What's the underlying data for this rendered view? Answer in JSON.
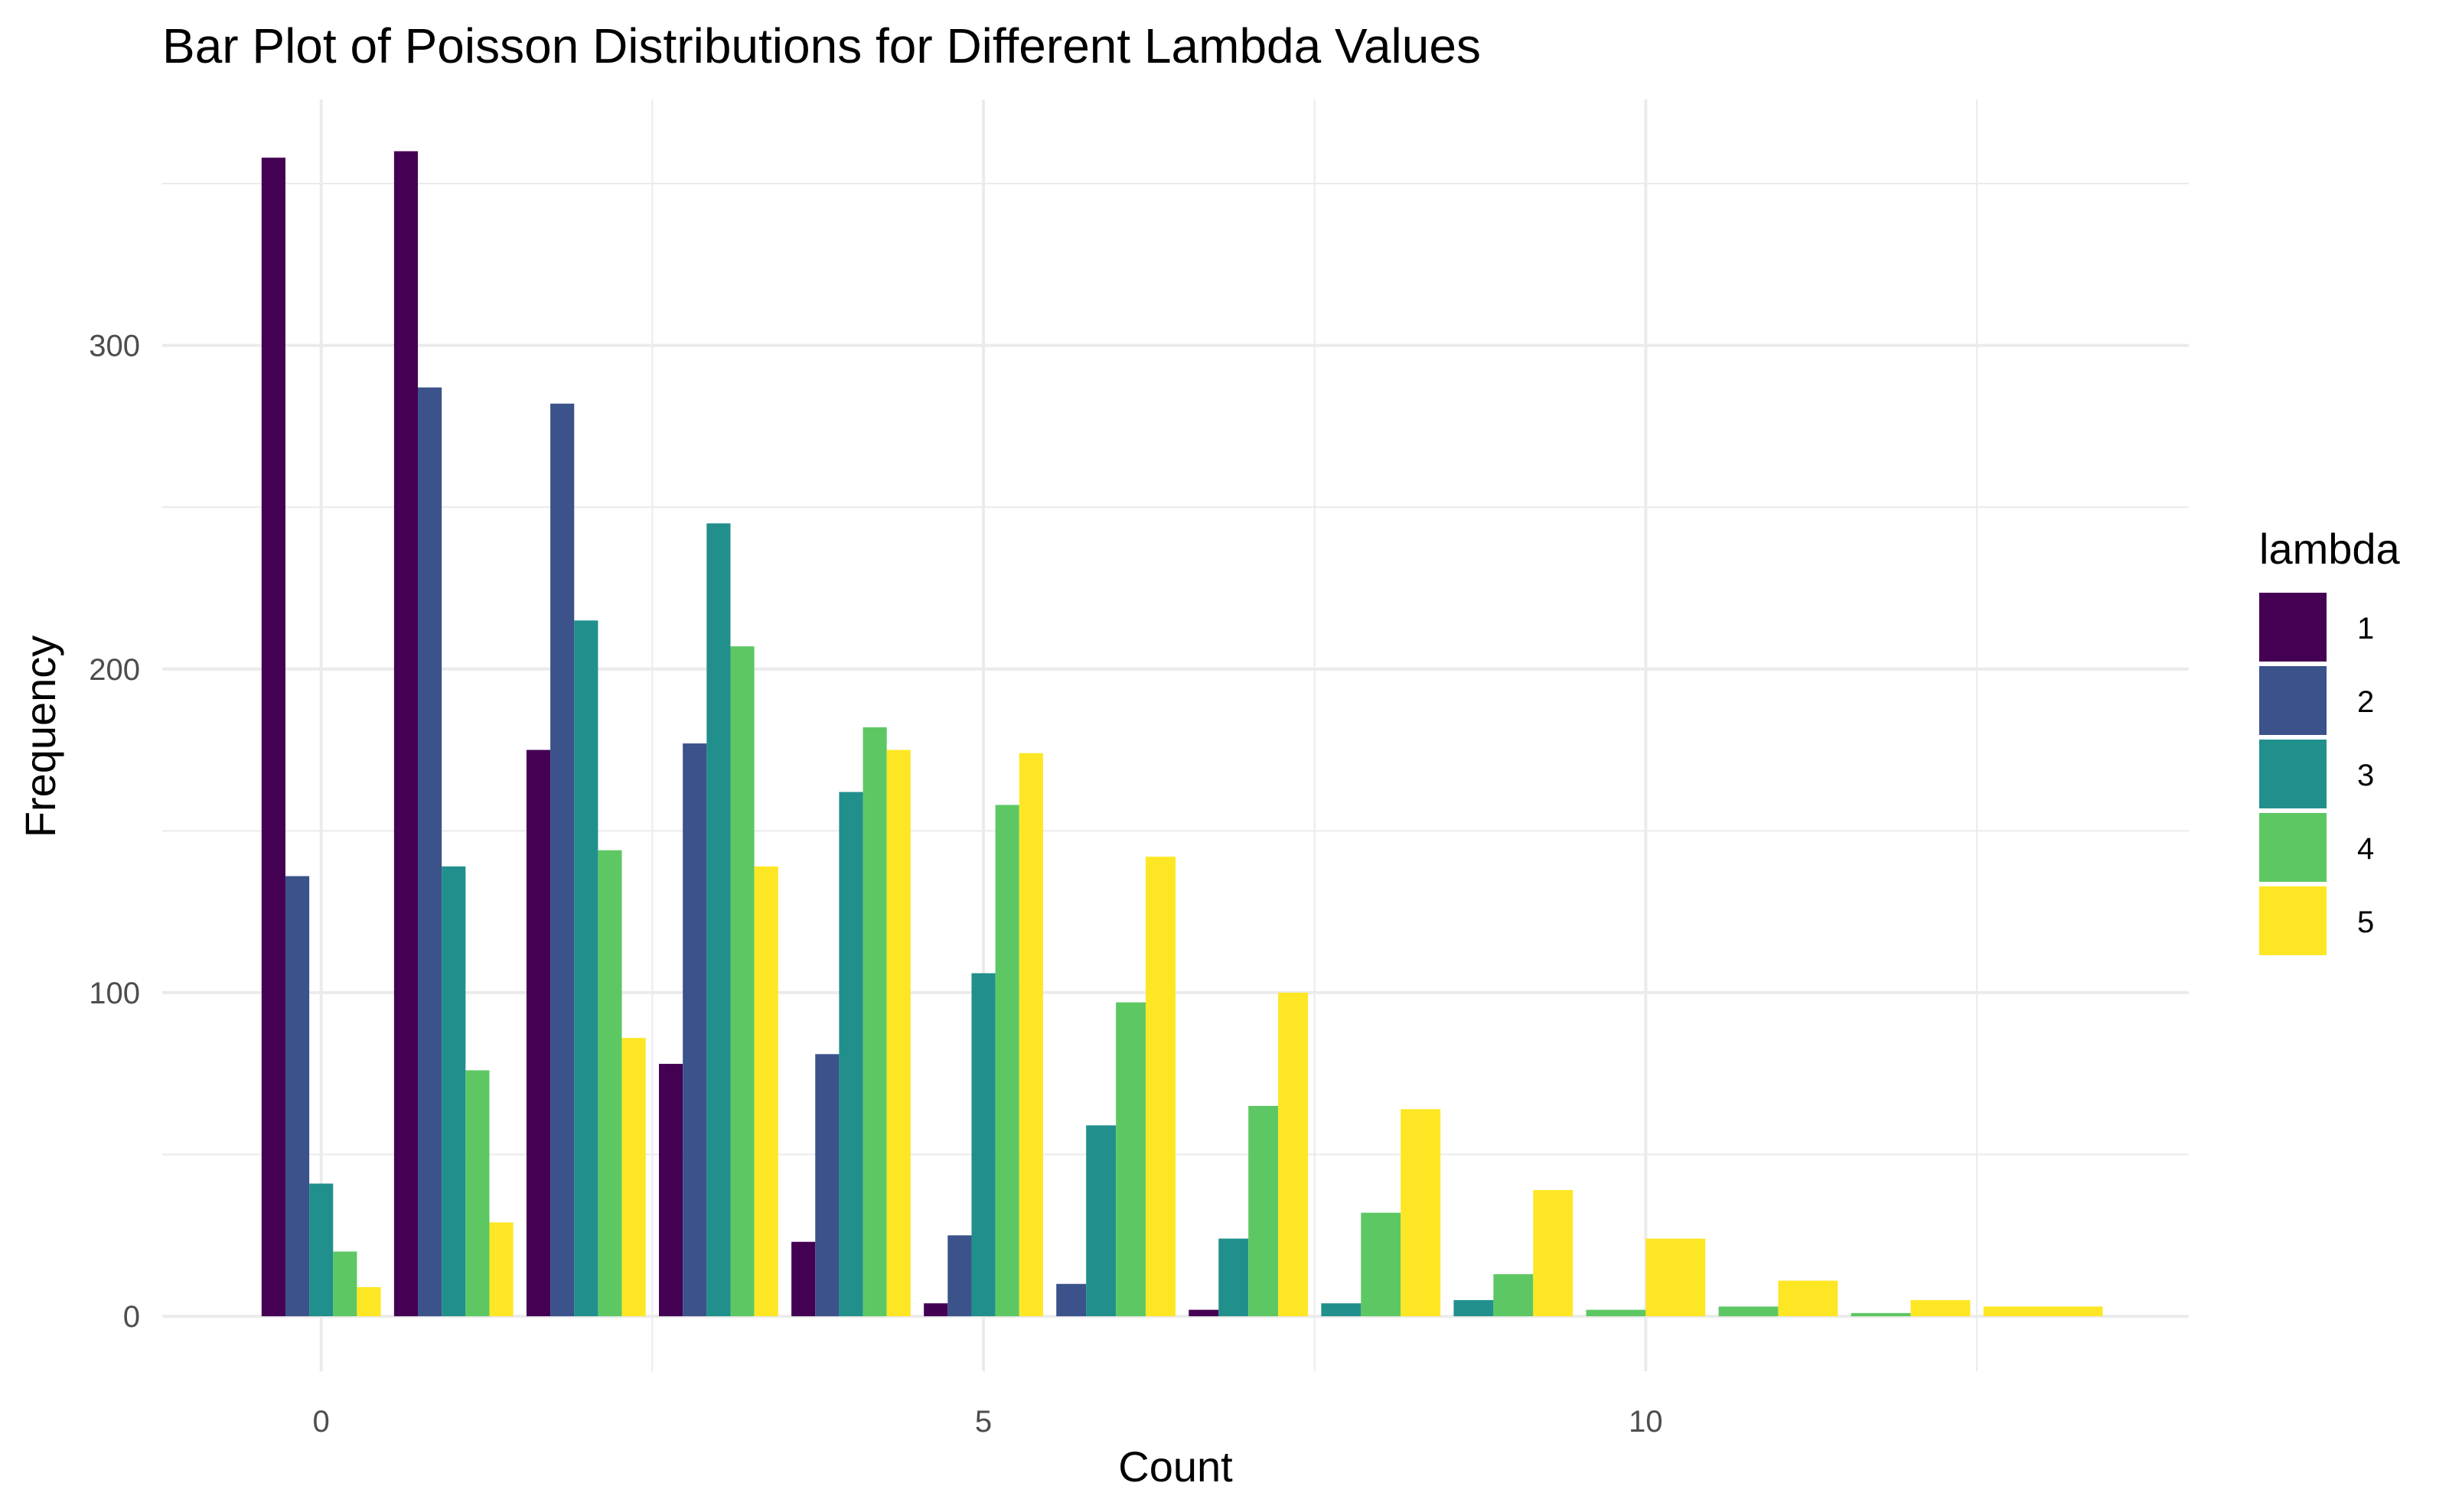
{
  "chart_data": {
    "type": "bar",
    "title": "Bar Plot of Poisson Distributions for Different Lambda Values",
    "xlabel": "Count",
    "ylabel": "Frequency",
    "xlim": [
      -1.2,
      14.1
    ],
    "ylim": [
      -17,
      376
    ],
    "x_ticks": [
      0,
      5,
      10
    ],
    "x_tick_labels": [
      "0",
      "5",
      "10"
    ],
    "y_ticks": [
      0,
      100,
      200,
      300
    ],
    "y_tick_labels": [
      "0",
      "100",
      "200",
      "300"
    ],
    "grid": true,
    "legend": {
      "title": "lambda",
      "position": "right"
    },
    "series": [
      {
        "name": "1",
        "color": "#440154",
        "values": [
          {
            "x": 0,
            "y": 358
          },
          {
            "x": 1,
            "y": 360
          },
          {
            "x": 2,
            "y": 175
          },
          {
            "x": 3,
            "y": 78
          },
          {
            "x": 4,
            "y": 23
          },
          {
            "x": 5,
            "y": 4
          },
          {
            "x": 7,
            "y": 2
          }
        ]
      },
      {
        "name": "2",
        "color": "#3B528B",
        "values": [
          {
            "x": 0,
            "y": 136
          },
          {
            "x": 1,
            "y": 287
          },
          {
            "x": 2,
            "y": 282
          },
          {
            "x": 3,
            "y": 177
          },
          {
            "x": 4,
            "y": 81
          },
          {
            "x": 5,
            "y": 25
          },
          {
            "x": 6,
            "y": 10
          }
        ]
      },
      {
        "name": "3",
        "color": "#21908C",
        "values": [
          {
            "x": 0,
            "y": 41
          },
          {
            "x": 1,
            "y": 139
          },
          {
            "x": 2,
            "y": 215
          },
          {
            "x": 3,
            "y": 245
          },
          {
            "x": 4,
            "y": 162
          },
          {
            "x": 5,
            "y": 106
          },
          {
            "x": 6,
            "y": 59
          },
          {
            "x": 7,
            "y": 24
          },
          {
            "x": 8,
            "y": 4
          },
          {
            "x": 9,
            "y": 5
          }
        ]
      },
      {
        "name": "4",
        "color": "#5DC863",
        "values": [
          {
            "x": 0,
            "y": 20
          },
          {
            "x": 1,
            "y": 76
          },
          {
            "x": 2,
            "y": 144
          },
          {
            "x": 3,
            "y": 207
          },
          {
            "x": 4,
            "y": 182
          },
          {
            "x": 5,
            "y": 158
          },
          {
            "x": 6,
            "y": 97
          },
          {
            "x": 7,
            "y": 65
          },
          {
            "x": 8,
            "y": 32
          },
          {
            "x": 9,
            "y": 13
          },
          {
            "x": 10,
            "y": 2
          },
          {
            "x": 11,
            "y": 3
          },
          {
            "x": 12,
            "y": 1
          }
        ]
      },
      {
        "name": "5",
        "color": "#FDE725",
        "values": [
          {
            "x": 0,
            "y": 9
          },
          {
            "x": 1,
            "y": 29
          },
          {
            "x": 2,
            "y": 86
          },
          {
            "x": 3,
            "y": 139
          },
          {
            "x": 4,
            "y": 175
          },
          {
            "x": 5,
            "y": 174
          },
          {
            "x": 6,
            "y": 142
          },
          {
            "x": 7,
            "y": 100
          },
          {
            "x": 8,
            "y": 64
          },
          {
            "x": 9,
            "y": 39
          },
          {
            "x": 10,
            "y": 24
          },
          {
            "x": 11,
            "y": 11
          },
          {
            "x": 12,
            "y": 5
          },
          {
            "x": 13,
            "y": 3
          }
        ]
      }
    ]
  }
}
